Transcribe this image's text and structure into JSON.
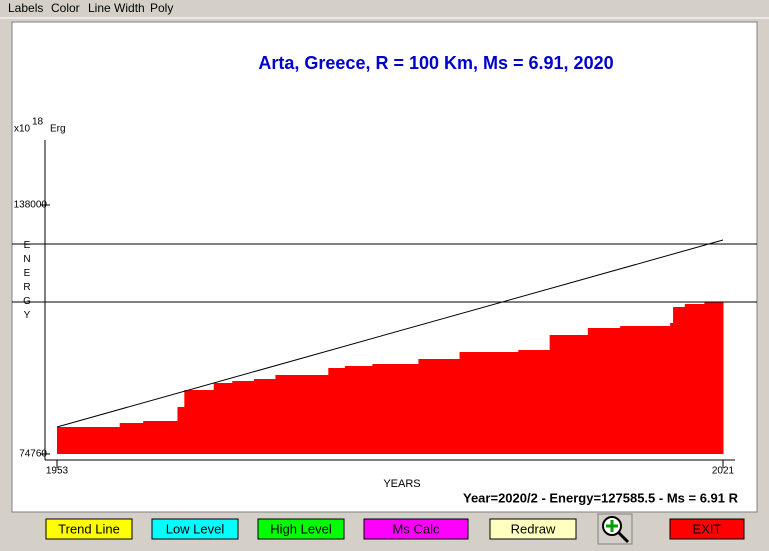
{
  "menu": [
    "Labels",
    "Color",
    "Line Width",
    "Poly"
  ],
  "chart_data": {
    "type": "step-area",
    "title": "Arta, Greece, R = 100 Km, Ms = 6.91, 2020",
    "unit_prefix": "x10",
    "unit_exponent": "18",
    "unit_name": "Erg",
    "y_label": "ENERGY",
    "x_label": "YEARS",
    "color": "#ff0000",
    "x": [
      1953,
      1959.4,
      1961.8,
      1965.3,
      1966.0,
      1969.0,
      1970.9,
      1973.1,
      1975.3,
      1980.7,
      1982.4,
      1985.2,
      1989.9,
      1994.1,
      2000.1,
      2003.3,
      2007.2,
      2010.5,
      2015.6,
      2015.9,
      2017.1,
      2019.1
    ],
    "values": [
      81616,
      82632,
      83140,
      86696,
      91014,
      92792,
      93299,
      93807,
      94823,
      96601,
      97109,
      97617,
      98887,
      100665,
      101173,
      104983,
      106760,
      107268,
      108030,
      112094,
      112856,
      113364
    ],
    "xlim": [
      1953,
      2021
    ],
    "xticks": [
      1953,
      2021
    ],
    "ylim": [
      74760,
      138000
    ],
    "yticks": [
      74760,
      138000
    ],
    "trend": {
      "x": [
        1953,
        2021
      ],
      "values": [
        81616,
        129111
      ]
    },
    "levels": [
      128094,
      113362
    ]
  },
  "status": "Year=2020/2 - Energy=127585.5 - Ms = 6.91 R",
  "buttons": [
    {
      "label": "Trend Line",
      "color": "#ffff00"
    },
    {
      "label": "Low Level",
      "color": "#00ffff"
    },
    {
      "label": "High Level",
      "color": "#00ff00"
    },
    {
      "label": "Ms Calc",
      "color": "#ff00ff"
    },
    {
      "label": "Redraw",
      "color": "#ffffc0"
    },
    {
      "label": "EXIT",
      "color": "#ff0000"
    }
  ]
}
